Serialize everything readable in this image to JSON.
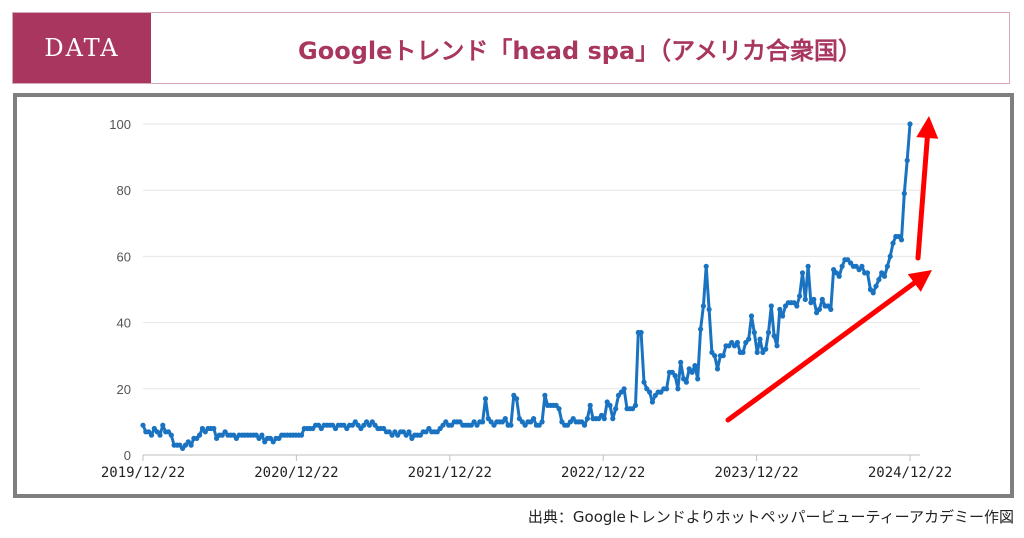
{
  "header": {
    "badge": "DATA",
    "title": "Googleトレンド「head spa」（アメリカ合衆国）"
  },
  "source": "出典：Googleトレンドよりホットペッパービューティーアカデミー作図",
  "colors": {
    "accent": "#a8365f",
    "line": "#1a73c1",
    "arrow": "#ff0000",
    "frame": "#7f7f7f"
  },
  "chart_data": {
    "type": "line",
    "title": "",
    "xlabel": "",
    "ylabel": "",
    "ylim": [
      0,
      100
    ],
    "yticks": [
      0,
      20,
      40,
      60,
      80,
      100
    ],
    "xtick_labels": [
      "2019/12/22",
      "2020/12/22",
      "2021/12/22",
      "2022/12/22",
      "2023/12/22",
      "2024/12/22"
    ],
    "grid": true,
    "series": [
      {
        "values": [
          9,
          7,
          7,
          6,
          8,
          7,
          6,
          9,
          7,
          7,
          6,
          3,
          3,
          3,
          2,
          3,
          4,
          3,
          5,
          5,
          6,
          8,
          7,
          8,
          8,
          8,
          5,
          6,
          6,
          7,
          6,
          6,
          6,
          5,
          6,
          6,
          6,
          6,
          6,
          6,
          6,
          5,
          6,
          4,
          5,
          5,
          4,
          5,
          5,
          6,
          6,
          6,
          6,
          6,
          6,
          6,
          6,
          8,
          8,
          8,
          8,
          9,
          9,
          8,
          9,
          9,
          9,
          9,
          8,
          9,
          9,
          9,
          8,
          9,
          9,
          10,
          9,
          8,
          9,
          10,
          9,
          10,
          9,
          8,
          8,
          8,
          7,
          7,
          6,
          7,
          6,
          7,
          7,
          6,
          7,
          5,
          6,
          6,
          6,
          7,
          7,
          8,
          7,
          7,
          7,
          8,
          9,
          10,
          9,
          9,
          10,
          10,
          10,
          9,
          9,
          9,
          9,
          10,
          9,
          10,
          10,
          17,
          11,
          10,
          9,
          10,
          10,
          10,
          11,
          9,
          9,
          18,
          17,
          11,
          10,
          9,
          10,
          10,
          11,
          9,
          9,
          10,
          18,
          15,
          15,
          15,
          15,
          14,
          10,
          9,
          9,
          10,
          11,
          10,
          10,
          10,
          9,
          11,
          15,
          11,
          11,
          11,
          12,
          11,
          16,
          15,
          11,
          14,
          18,
          19,
          20,
          14,
          14,
          14,
          15,
          37,
          37,
          22,
          20,
          19,
          16,
          18,
          19,
          19,
          20,
          20,
          25,
          25,
          24,
          20,
          28,
          23,
          22,
          26,
          25,
          27,
          23,
          38,
          45,
          57,
          44,
          31,
          30,
          26,
          30,
          30,
          33,
          33,
          34,
          33,
          34,
          31,
          31,
          34,
          35,
          42,
          37,
          31,
          35,
          31,
          32,
          37,
          45,
          36,
          33,
          44,
          42,
          45,
          46,
          46,
          46,
          45,
          48,
          55,
          47,
          57,
          46,
          47,
          43,
          44,
          47,
          45,
          45,
          44,
          56,
          55,
          54,
          57,
          59,
          59,
          58,
          57,
          57,
          56,
          57,
          55,
          55,
          50,
          49,
          51,
          53,
          55,
          54,
          57,
          60,
          64,
          66,
          66,
          65,
          79,
          89,
          100
        ]
      }
    ]
  }
}
